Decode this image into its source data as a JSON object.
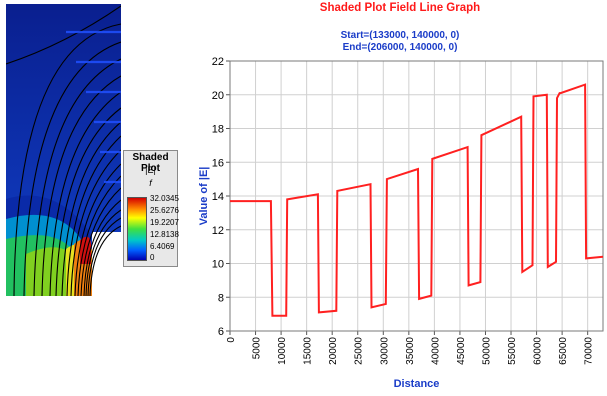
{
  "legend": {
    "title": "Shaded Plot",
    "quantity": "|E|",
    "italic_label": "f",
    "values": [
      "32.0345",
      "25.6276",
      "19.2207",
      "12.8138",
      "6.4069",
      "0"
    ]
  },
  "colors": {
    "title": "#ff1a1a",
    "subtitle": "#1a3cc8",
    "axis_label": "#1a3cc8",
    "series": "#ff2020",
    "field_background": "#0a1f8f",
    "field_lines": "#000000"
  },
  "chart_data": {
    "type": "line",
    "title": "Shaded Plot Field Line Graph",
    "subtitle_lines": [
      "Start=(133000, 140000, 0)",
      "End=(206000, 140000, 0)"
    ],
    "xlabel": "Distance",
    "ylabel": "Value of |E|",
    "xlim": [
      0,
      73000
    ],
    "ylim": [
      6,
      22
    ],
    "grid": true,
    "xticks": [
      0,
      5000,
      10000,
      15000,
      20000,
      25000,
      30000,
      35000,
      40000,
      45000,
      50000,
      55000,
      60000,
      65000,
      70000
    ],
    "xtick_labels": [
      "0",
      "5000",
      "10000",
      "15000",
      "20000",
      "25000",
      "30000",
      "35000",
      "40000",
      "45000",
      "50000",
      "55000",
      "60000",
      "65000",
      "70000"
    ],
    "yticks": [
      6,
      8,
      10,
      12,
      14,
      16,
      18,
      20,
      22
    ],
    "ytick_labels": [
      "6",
      "8",
      "10",
      "12",
      "14",
      "16",
      "18",
      "20",
      "22"
    ],
    "series": [
      {
        "x": [
          0,
          8000,
          8300,
          11000,
          11200,
          17200,
          17400,
          20800,
          21000,
          27500,
          27700,
          30500,
          30700,
          36800,
          37000,
          39400,
          39600,
          46500,
          46700,
          49000,
          49200,
          57000,
          57200,
          59200,
          59400,
          62000,
          62200,
          63800,
          64000,
          64500,
          64700,
          69500,
          69700,
          73000
        ],
        "y": [
          13.7,
          13.7,
          6.9,
          6.9,
          13.8,
          14.1,
          7.1,
          7.2,
          14.3,
          14.7,
          7.4,
          7.6,
          15.0,
          15.6,
          7.9,
          8.1,
          16.2,
          16.9,
          8.7,
          8.9,
          17.6,
          18.7,
          9.5,
          9.9,
          19.9,
          20.0,
          9.8,
          10.1,
          19.8,
          20.1,
          20.1,
          20.6,
          10.3,
          10.4
        ]
      }
    ]
  }
}
